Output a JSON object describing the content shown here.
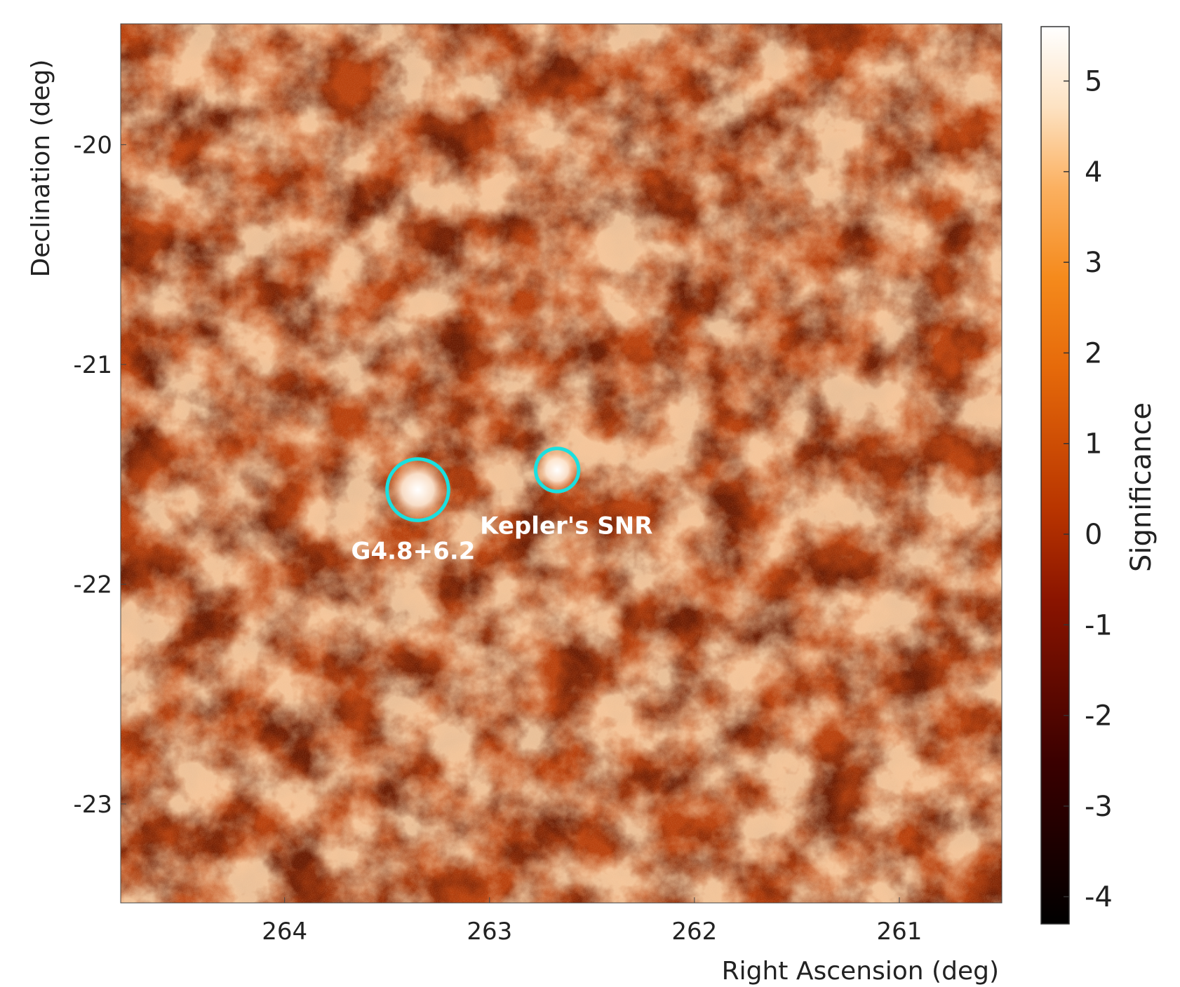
{
  "chart_data": {
    "type": "heatmap",
    "title": "",
    "xlabel": "Right Ascension (deg)",
    "ylabel": "Declination (deg)",
    "colorbar_label": "Significance",
    "x_ticks": [
      264,
      263,
      262,
      261
    ],
    "y_ticks": [
      -20,
      -21,
      -22,
      -23
    ],
    "xlim": [
      264.8,
      260.5
    ],
    "ylim": [
      -23.45,
      -19.45
    ],
    "colorbar_ticks": [
      5,
      4,
      3,
      2,
      1,
      0,
      -1,
      -2,
      -3,
      -4
    ],
    "colorbar_range": [
      -4.3,
      5.6
    ],
    "colormap": "gist_heat",
    "sources": [
      {
        "name": "G4.8+6.2",
        "ra": 263.35,
        "dec": -21.57,
        "radius_deg": 0.15,
        "significance": 5.2
      },
      {
        "name": "Kepler's SNR",
        "ra": 262.67,
        "dec": -21.48,
        "radius_deg": 0.105,
        "significance": 5.0
      }
    ],
    "marker_color": "#19e0e0",
    "grid": false,
    "legend": "none"
  }
}
